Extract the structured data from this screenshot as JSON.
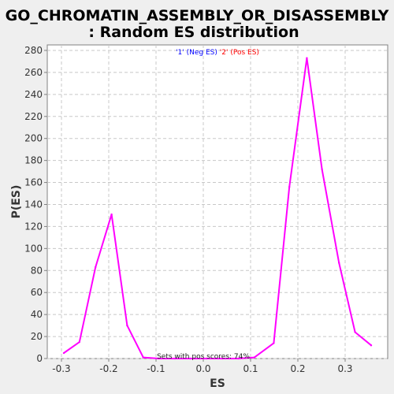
{
  "chart_data": {
    "type": "line",
    "title_line1": "GO_CHROMATIN_ASSEMBLY_OR_DISASSEMBLY",
    "title_line2": ": Random ES distribution",
    "xlabel": "ES",
    "ylabel": "P(ES)",
    "xlim": [
      -0.33,
      0.39
    ],
    "ylim": [
      0,
      285
    ],
    "xticks": [
      -0.3,
      -0.2,
      -0.1,
      0.0,
      0.1,
      0.2,
      0.3
    ],
    "xtick_labels": [
      "-0.3",
      "-0.2",
      "-0.1",
      "0.0",
      "0.1",
      "0.2",
      "0.3"
    ],
    "yticks": [
      0,
      20,
      40,
      60,
      80,
      100,
      120,
      140,
      160,
      180,
      200,
      220,
      240,
      260,
      280
    ],
    "ytick_labels": [
      "0",
      "20",
      "40",
      "60",
      "80",
      "100",
      "120",
      "140",
      "160",
      "180",
      "200",
      "220",
      "240",
      "260",
      "280"
    ],
    "grid": true,
    "legend_placement": "top-center",
    "legend": [
      {
        "label": "'1'",
        "desc": " (Neg ES)",
        "color": "#0000ff"
      },
      {
        "label": "'2'",
        "desc": " (Pos ES)",
        "color": "#ff0000"
      }
    ],
    "annotation": "Sets with pos scores: 74%",
    "series": [
      {
        "color": "#ff00ff",
        "points": [
          [
            -0.295,
            5
          ],
          [
            -0.262,
            15
          ],
          [
            -0.228,
            83
          ],
          [
            -0.194,
            131
          ],
          [
            -0.161,
            30
          ],
          [
            -0.127,
            1
          ],
          [
            -0.094,
            0
          ],
          [
            -0.06,
            0
          ],
          [
            -0.027,
            0
          ],
          [
            0.007,
            0
          ],
          [
            0.041,
            0
          ],
          [
            0.074,
            0
          ],
          [
            0.108,
            1
          ],
          [
            0.149,
            14
          ],
          [
            0.182,
            156
          ],
          [
            0.219,
            273
          ],
          [
            0.251,
            172
          ],
          [
            0.287,
            87
          ],
          [
            0.321,
            24
          ],
          [
            0.355,
            12
          ]
        ]
      }
    ]
  }
}
